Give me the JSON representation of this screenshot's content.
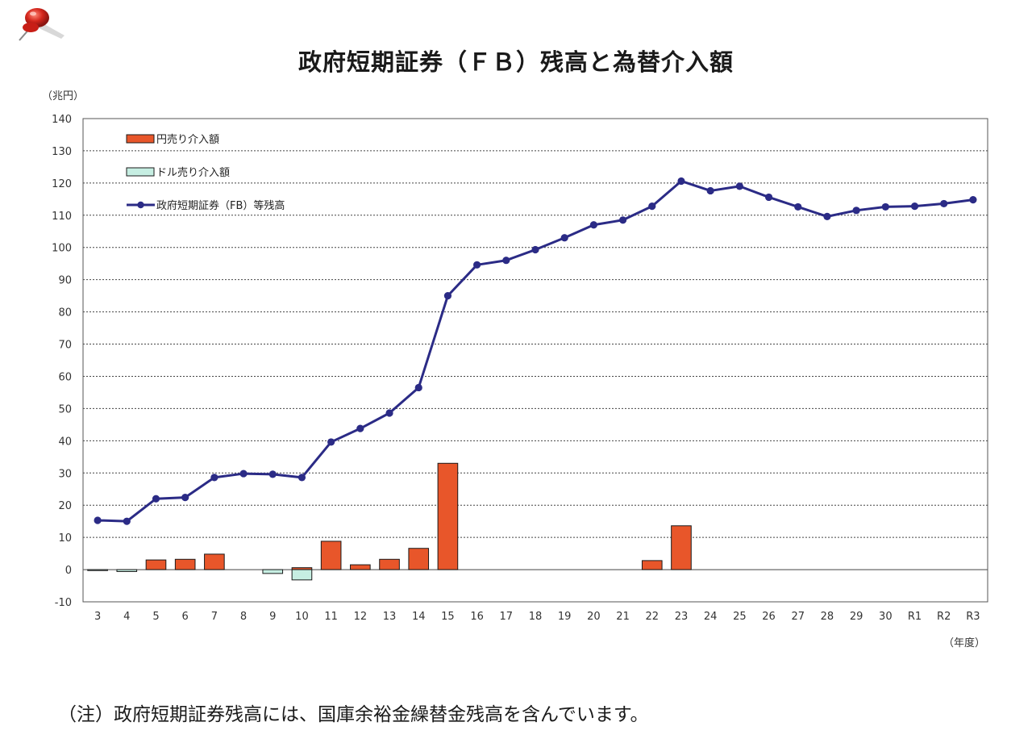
{
  "title": "政府短期証券（ＦＢ）残高と為替介入額",
  "note": "（注）政府短期証券残高には、国庫余裕金繰替金残高を含んでいます。",
  "icons": {
    "pin": "push-pin-icon"
  },
  "chart_data": {
    "type": "bar",
    "title": "政府短期証券（ＦＢ）残高と為替介入額",
    "ylabel": "（兆円）",
    "xlabel": "（年度）",
    "ylim": [
      -10,
      140
    ],
    "yticks": [
      -10,
      0,
      10,
      20,
      30,
      40,
      50,
      60,
      70,
      80,
      90,
      100,
      110,
      120,
      130,
      140
    ],
    "grid": true,
    "legend_position": "top-left",
    "categories": [
      "3",
      "4",
      "5",
      "6",
      "7",
      "8",
      "9",
      "10",
      "11",
      "12",
      "13",
      "14",
      "15",
      "16",
      "17",
      "18",
      "19",
      "20",
      "21",
      "22",
      "23",
      "24",
      "25",
      "26",
      "27",
      "28",
      "29",
      "30",
      "R1",
      "R2",
      "R3"
    ],
    "series": [
      {
        "name": "円売り介入額",
        "type": "bar",
        "color": "#e8562a",
        "values": [
          0,
          0,
          3,
          3.2,
          4.8,
          0,
          0,
          0.6,
          8.8,
          1.5,
          3.2,
          6.6,
          33,
          0,
          0,
          0,
          0,
          0,
          0,
          2.8,
          13.6,
          0,
          0,
          0,
          0,
          0,
          0,
          0,
          0,
          0,
          0
        ]
      },
      {
        "name": "ドル売り介入額",
        "type": "bar",
        "color": "#c6eee2",
        "values": [
          -0.1,
          -0.6,
          0,
          0,
          0,
          0,
          -1.2,
          -3.2,
          0,
          0,
          0,
          0,
          0,
          0,
          0,
          0,
          0,
          0,
          0,
          0,
          0,
          0,
          0,
          0,
          0,
          0,
          0,
          0,
          0,
          0,
          0
        ]
      },
      {
        "name": "政府短期証券（FB）等残高",
        "type": "line",
        "color": "#2b2b86",
        "values": [
          15.3,
          15,
          22,
          22.4,
          28.6,
          29.8,
          29.6,
          28.6,
          39.6,
          43.8,
          48.6,
          56.5,
          85,
          94.6,
          96,
          99.3,
          103,
          107,
          108.5,
          112.8,
          120.6,
          117.6,
          119,
          115.6,
          112.6,
          109.6,
          111.5,
          112.6,
          112.8,
          113.6,
          114.8
        ]
      }
    ]
  }
}
